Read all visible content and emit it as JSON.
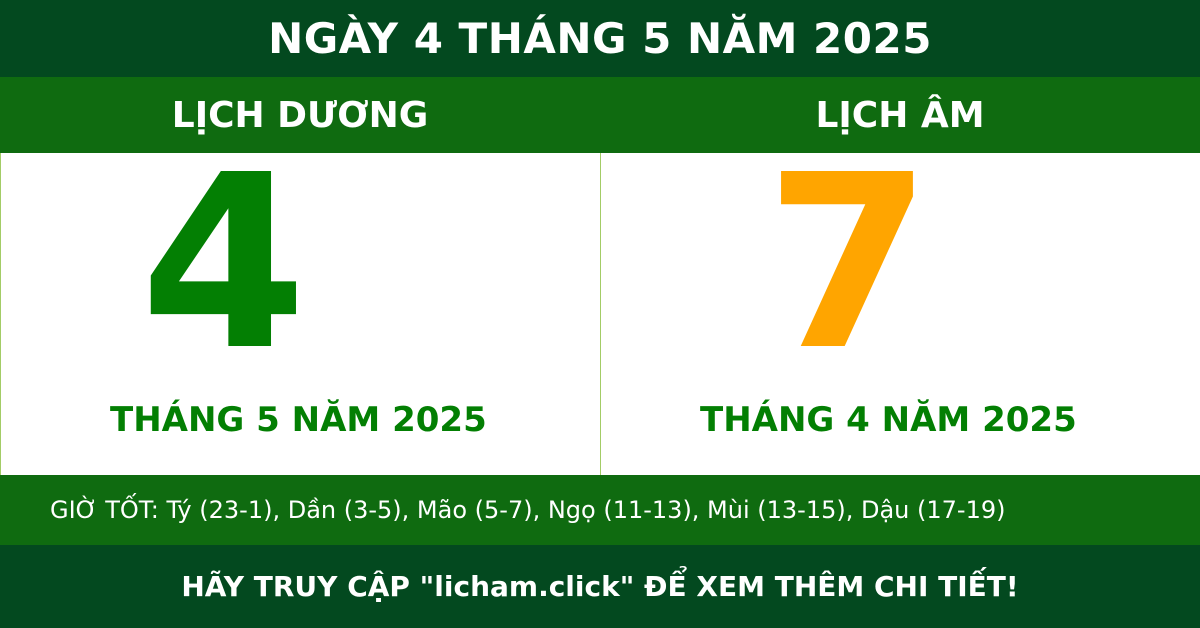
{
  "header": {
    "title": "NGÀY 4 THÁNG 5 NĂM 2025"
  },
  "solar": {
    "label": "LỊCH DƯƠNG",
    "day": "4",
    "month_year": "THÁNG 5 NĂM 2025"
  },
  "lunar": {
    "label": "LỊCH ÂM",
    "day": "7",
    "month_year": "THÁNG 4 NĂM 2025"
  },
  "good_hours": "GIỜ TỐT: Tý (23-1), Dần (3-5), Mão (5-7), Ngọ (11-13), Mùi (13-15), Dậu (17-19)",
  "footer": {
    "text": "HÃY TRUY CẬP \"licham.click\" ĐỂ XEM THÊM CHI TIẾT!"
  },
  "colors": {
    "dark_green": "#03491f",
    "green": "#0f6b10",
    "solar_day": "#037f03",
    "lunar_day": "#ffa500"
  }
}
